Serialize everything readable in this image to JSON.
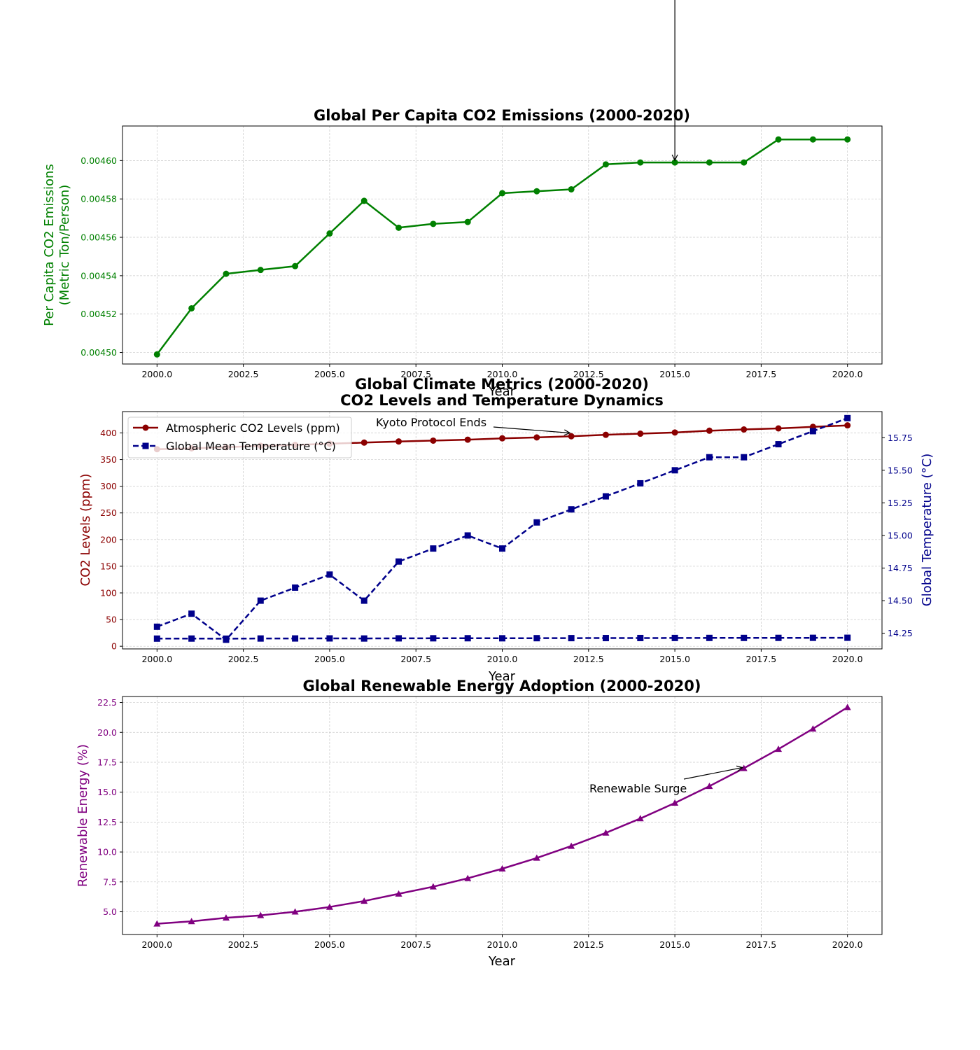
{
  "colors": {
    "emissions": "#008000",
    "co2": "#8b0000",
    "temperature": "#00008b",
    "renewable": "#800080"
  },
  "chart_data": [
    {
      "type": "line",
      "title": "Global Per Capita CO2 Emissions (2000-2020)",
      "xlabel": "Year",
      "ylabel": [
        "Per Capita CO2 Emissions",
        "(Metric Ton/Person)"
      ],
      "xlim": [
        1999,
        2021
      ],
      "ylim": [
        0.004494,
        0.004618
      ],
      "xticks": [
        "2000.0",
        "2002.5",
        "2005.0",
        "2007.5",
        "2010.0",
        "2012.5",
        "2015.0",
        "2017.5",
        "2020.0"
      ],
      "yticks": [
        "0.00450",
        "0.00452",
        "0.00454",
        "0.00456",
        "0.00458",
        "0.00460"
      ],
      "grid": true,
      "annotation": {
        "text": "",
        "x": 2015,
        "y": 0.004599
      },
      "series": [
        {
          "x": [
            2000,
            2001,
            2002,
            2003,
            2004,
            2005,
            2006,
            2007,
            2008,
            2009,
            2010,
            2011,
            2012,
            2013,
            2014,
            2015,
            2016,
            2017,
            2018,
            2019,
            2020
          ],
          "values": [
            0.004499,
            0.004523,
            0.004541,
            0.004543,
            0.004545,
            0.004562,
            0.004579,
            0.004565,
            0.004567,
            0.004568,
            0.004583,
            0.004584,
            0.004585,
            0.004598,
            0.004599,
            0.004599,
            0.004599,
            0.004599,
            0.004611,
            0.004611,
            0.004611
          ],
          "marker": "circle"
        }
      ]
    },
    {
      "type": "line",
      "title": [
        "Global Climate Metrics (2000-2020)",
        "CO2 Levels and Temperature Dynamics"
      ],
      "xlabel": "Year",
      "ylabel": "CO2 Levels (ppm)",
      "ylabel_right": "Global Temperature (°C)",
      "xlim": [
        1999,
        2021
      ],
      "ylim": [
        -5,
        440
      ],
      "ylim_right": [
        14.13,
        15.95
      ],
      "xticks": [
        "2000.0",
        "2002.5",
        "2005.0",
        "2007.5",
        "2010.0",
        "2012.5",
        "2015.0",
        "2017.5",
        "2020.0"
      ],
      "yticks": [
        "0",
        "50",
        "100",
        "150",
        "200",
        "250",
        "300",
        "350",
        "400"
      ],
      "yticks_right": [
        "14.25",
        "14.50",
        "14.75",
        "15.00",
        "15.25",
        "15.50",
        "15.75"
      ],
      "grid": true,
      "legend": "top-left",
      "annotation": {
        "text": "Kyoto Protocol Ends",
        "x": 2012,
        "y": 400
      },
      "x": [
        2000,
        2001,
        2002,
        2003,
        2004,
        2005,
        2006,
        2007,
        2008,
        2009,
        2010,
        2011,
        2012,
        2013,
        2014,
        2015,
        2016,
        2017,
        2018,
        2019,
        2020
      ],
      "series": [
        {
          "name": "Atmospheric CO2 Levels (ppm)",
          "axis": "left",
          "marker": "circle",
          "values": [
            369.5,
            371.1,
            373.2,
            375.8,
            377.5,
            379.8,
            381.9,
            384.0,
            385.6,
            387.4,
            389.9,
            391.6,
            393.8,
            396.5,
            398.6,
            400.8,
            404.2,
            406.5,
            408.5,
            411.4,
            414.2
          ]
        },
        {
          "name": "Global Mean Temperature (°C)",
          "axis": "right",
          "marker": "square",
          "dashed": true,
          "values": [
            14.3,
            14.4,
            14.2,
            14.5,
            14.6,
            14.7,
            14.5,
            14.8,
            14.9,
            15.0,
            14.9,
            15.1,
            15.2,
            15.3,
            15.4,
            15.5,
            15.6,
            15.6,
            15.7,
            15.8,
            15.9
          ]
        },
        {
          "axis": "left",
          "marker": "square",
          "dashed": true,
          "values": [
            14.3,
            14.4,
            14.2,
            14.5,
            14.6,
            14.7,
            14.5,
            14.8,
            14.9,
            15.0,
            14.9,
            15.1,
            15.2,
            15.3,
            15.4,
            15.5,
            15.6,
            15.6,
            15.7,
            15.8,
            15.9
          ]
        }
      ]
    },
    {
      "type": "line",
      "title": "Global Renewable Energy Adoption (2000-2020)",
      "xlabel": "Year",
      "ylabel": "Renewable Energy (%)",
      "xlim": [
        1999,
        2021
      ],
      "ylim": [
        3.1,
        23.0
      ],
      "xticks": [
        "2000.0",
        "2002.5",
        "2005.0",
        "2007.5",
        "2010.0",
        "2012.5",
        "2015.0",
        "2017.5",
        "2020.0"
      ],
      "yticks": [
        "5.0",
        "7.5",
        "10.0",
        "12.5",
        "15.0",
        "17.5",
        "20.0",
        "22.5"
      ],
      "grid": true,
      "annotation": {
        "text": "Renewable Surge",
        "x": 2017,
        "y": 17.0
      },
      "series": [
        {
          "x": [
            2000,
            2001,
            2002,
            2003,
            2004,
            2005,
            2006,
            2007,
            2008,
            2009,
            2010,
            2011,
            2012,
            2013,
            2014,
            2015,
            2016,
            2017,
            2018,
            2019,
            2020
          ],
          "values": [
            4.0,
            4.2,
            4.5,
            4.7,
            5.0,
            5.4,
            5.9,
            6.5,
            7.1,
            7.8,
            8.6,
            9.5,
            10.5,
            11.6,
            12.8,
            14.1,
            15.5,
            17.0,
            18.6,
            20.3,
            22.1
          ],
          "marker": "triangle"
        }
      ]
    }
  ]
}
